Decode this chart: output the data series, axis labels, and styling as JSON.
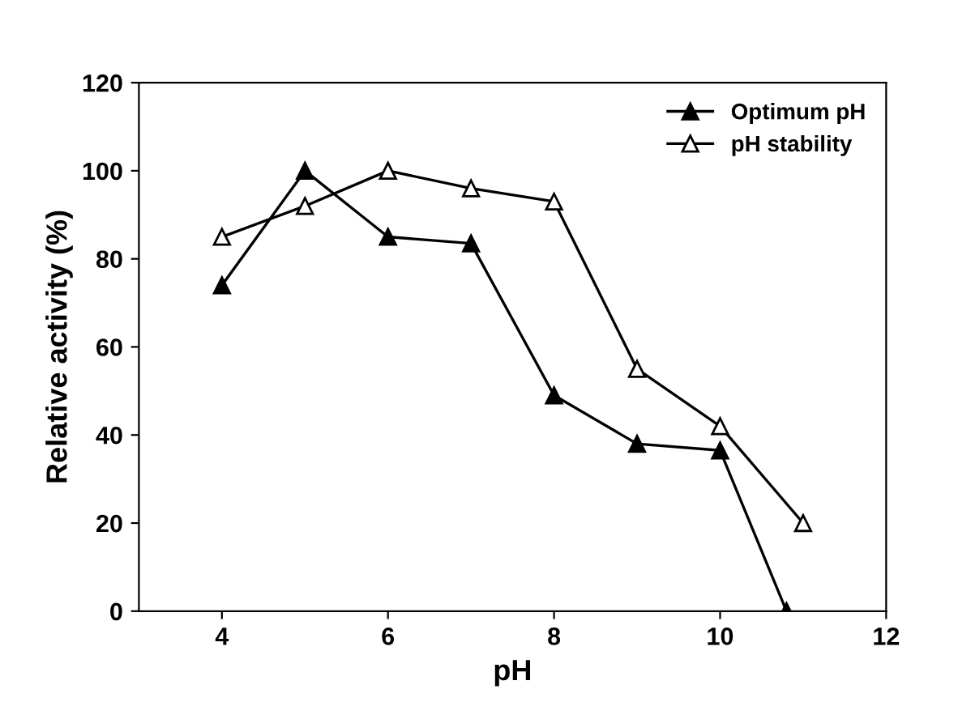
{
  "chart_data": {
    "type": "line",
    "xlabel": "pH",
    "ylabel": "Relative activity (%)",
    "xlim": [
      3,
      12
    ],
    "xticks": [
      4,
      6,
      8,
      10,
      12
    ],
    "ylim": [
      0,
      120
    ],
    "yticks": [
      0,
      20,
      40,
      60,
      80,
      100,
      120
    ],
    "grid": false,
    "legend": "top right",
    "line_style": "solid",
    "series": [
      {
        "name": "Optimum pH",
        "color": "#000000",
        "marker": "triangle",
        "x": [
          4,
          5,
          6,
          7,
          8,
          9,
          10,
          10.8
        ],
        "values": [
          74,
          100,
          85,
          83.5,
          49,
          38,
          36.5,
          0
        ]
      },
      {
        "name": "pH stability",
        "color": "#000000",
        "marker": "triangle",
        "x": [
          4,
          5,
          6,
          7,
          8,
          9,
          10,
          11
        ],
        "values": [
          85,
          92,
          100,
          96,
          93,
          55,
          42,
          20
        ]
      }
    ]
  }
}
